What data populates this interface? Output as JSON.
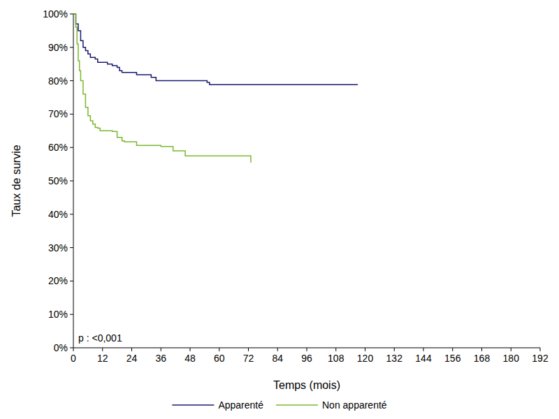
{
  "chart_data": {
    "type": "step",
    "x_label": "Temps (mois)",
    "y_label": "Taux de survie",
    "annotation": "p : <0,001",
    "xlim": [
      0,
      192
    ],
    "xticks": [
      0,
      12,
      24,
      36,
      48,
      60,
      72,
      84,
      96,
      108,
      120,
      132,
      144,
      156,
      168,
      180,
      192
    ],
    "ylim": [
      0,
      100
    ],
    "yticks": [
      {
        "value": 0,
        "label": "0%"
      },
      {
        "value": 10,
        "label": "10%"
      },
      {
        "value": 20,
        "label": "20%"
      },
      {
        "value": 30,
        "label": "30%"
      },
      {
        "value": 40,
        "label": "40%"
      },
      {
        "value": 50,
        "label": "50%"
      },
      {
        "value": 60,
        "label": "60%"
      },
      {
        "value": 70,
        "label": "70%"
      },
      {
        "value": 80,
        "label": "80%"
      },
      {
        "value": 90,
        "label": "90%"
      },
      {
        "value": 100,
        "label": "100%"
      }
    ],
    "legend": "bottom",
    "series": [
      {
        "name": "Apparenté",
        "color": "#1a1a6e",
        "x": [
          0,
          1,
          2,
          3,
          4,
          5,
          6,
          7,
          9,
          10,
          14,
          16,
          18,
          19,
          20,
          26,
          32,
          34,
          55,
          56,
          117
        ],
        "values": [
          100,
          97,
          95,
          92,
          90,
          89,
          88,
          87,
          86.5,
          85.5,
          85,
          84.5,
          84,
          83,
          82.5,
          81.8,
          81,
          80,
          79.5,
          78.8,
          78.8
        ]
      },
      {
        "name": "Non apparenté",
        "color": "#7cb82f",
        "x": [
          0,
          1,
          1.5,
          2,
          2.5,
          3,
          4,
          5,
          6,
          7,
          8,
          9,
          10,
          11,
          16,
          18,
          20,
          21,
          26,
          36,
          41,
          46,
          70,
          73
        ],
        "values": [
          100,
          96,
          91,
          86,
          83,
          80,
          76,
          72,
          69.5,
          68,
          67,
          66,
          65.8,
          65,
          64.8,
          63,
          62,
          61.7,
          60.6,
          60.3,
          59,
          57.5,
          57.5,
          55.5
        ]
      }
    ]
  }
}
